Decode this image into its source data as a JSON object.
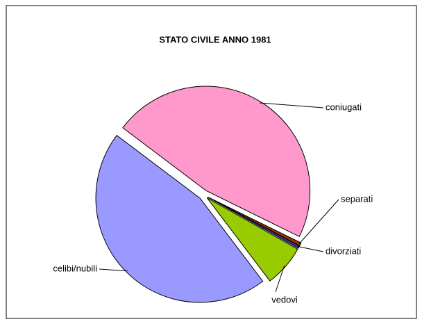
{
  "chart_data": {
    "type": "pie",
    "title": "STATO CIVILE ANNO 1981",
    "categories": [
      "coniugati",
      "separati",
      "divorziati",
      "vedovi",
      "celibi/nubili"
    ],
    "values": [
      47,
      0.5,
      0.4,
      6.5,
      45.6
    ],
    "colors": [
      "#ff99cc",
      "#993300",
      "#333399",
      "#99cc00",
      "#9999ff"
    ]
  }
}
